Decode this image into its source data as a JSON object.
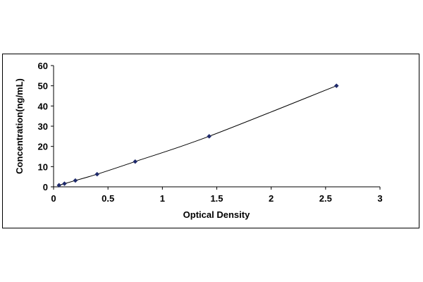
{
  "chart_data": {
    "type": "scatter",
    "title": "",
    "xlabel": "Optical Density",
    "ylabel": "Concentration(ng/mL)",
    "xlim": [
      0,
      3
    ],
    "ylim": [
      0,
      60
    ],
    "xticks": [
      0,
      0.5,
      1,
      1.5,
      2,
      2.5,
      3
    ],
    "xtick_labels": [
      "0",
      "0.5",
      "1",
      "1.5",
      "2",
      "2.5",
      "3"
    ],
    "yticks": [
      0,
      10,
      20,
      30,
      40,
      50,
      60
    ],
    "ytick_labels": [
      "0",
      "10",
      "20",
      "30",
      "40",
      "50",
      "60"
    ],
    "grid": false,
    "legend": "none",
    "series": [
      {
        "color": "#1f2a6b",
        "marker": "diamond",
        "trendline": "smooth",
        "points": [
          {
            "x": 0.05,
            "y": 0.78
          },
          {
            "x": 0.1,
            "y": 1.56
          },
          {
            "x": 0.2,
            "y": 3.12
          },
          {
            "x": 0.4,
            "y": 6.25
          },
          {
            "x": 0.75,
            "y": 12.5
          },
          {
            "x": 1.43,
            "y": 25
          },
          {
            "x": 2.6,
            "y": 50
          }
        ]
      }
    ]
  }
}
